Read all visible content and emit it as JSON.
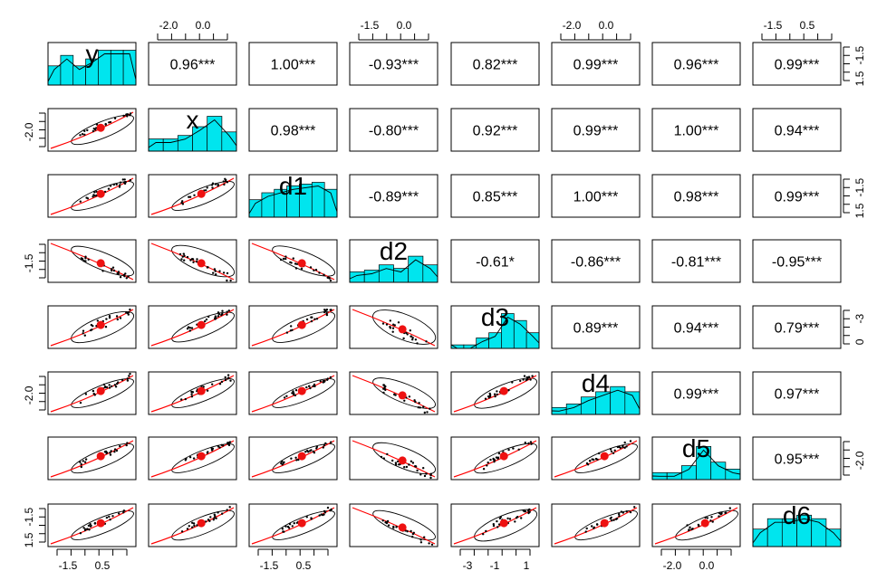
{
  "chart_data": {
    "type": "scatter",
    "title": "",
    "variables": [
      "y",
      "x",
      "d1",
      "d2",
      "d3",
      "d4",
      "d5",
      "d6"
    ],
    "correlations": [
      [
        "",
        "0.96***",
        "1.00***",
        "-0.93***",
        "0.82***",
        "0.99***",
        "0.96***",
        "0.99***"
      ],
      [
        "",
        "",
        "0.98***",
        "-0.80***",
        "0.92***",
        "0.99***",
        "1.00***",
        "0.94***"
      ],
      [
        "",
        "",
        "",
        "-0.89***",
        "0.85***",
        "1.00***",
        "0.98***",
        "0.99***"
      ],
      [
        "",
        "",
        "",
        "",
        "-0.61*",
        "-0.86***",
        "-0.81***",
        "-0.95***"
      ],
      [
        "",
        "",
        "",
        "",
        "",
        "0.89***",
        "0.94***",
        "0.79***"
      ],
      [
        "",
        "",
        "",
        "",
        "",
        "",
        "0.99***",
        "0.97***"
      ],
      [
        "",
        "",
        "",
        "",
        "",
        "",
        "",
        "0.95***"
      ],
      [
        "",
        "",
        "",
        "",
        "",
        "",
        "",
        ""
      ]
    ],
    "histograms": [
      [
        0.55,
        0.85,
        0.55,
        0.75,
        1.0,
        1.0,
        1.0
      ],
      [
        0.35,
        0.35,
        0.45,
        0.7,
        1.0,
        0.55
      ],
      [
        0.5,
        0.7,
        0.8,
        0.9,
        0.95,
        1.0,
        0.8
      ],
      [
        0.3,
        0.35,
        0.5,
        0.4,
        0.75,
        0.5
      ],
      [
        0.1,
        0.1,
        0.3,
        0.45,
        1.0,
        0.8,
        0.45
      ],
      [
        0.2,
        0.3,
        0.5,
        0.65,
        0.8,
        0.65
      ],
      [
        0.2,
        0.2,
        0.4,
        0.95,
        0.5,
        0.3
      ],
      [
        0.5,
        0.8,
        0.8,
        0.9,
        0.8,
        0.5
      ]
    ],
    "top_axis": {
      "1": [
        "-2.0",
        "0.0"
      ],
      "3": [
        "-1.5",
        "0.0"
      ],
      "5": [
        "-2.0",
        "0.0"
      ],
      "7": [
        "-1.5",
        "0.5"
      ]
    },
    "bottom_axis": {
      "0": [
        "-1.5",
        "0.5"
      ],
      "2": [
        "-1.5",
        "0.5"
      ],
      "4": [
        "-3",
        "-1",
        "1"
      ],
      "6": [
        "-2.0",
        "0.0"
      ]
    },
    "left_axis": {
      "1": [
        "-2.0"
      ],
      "3": [
        "-1.5"
      ],
      "5": [
        "-2.0"
      ],
      "7": [
        "-1.5",
        "1.5"
      ]
    },
    "right_axis": {
      "0": [
        "-1.5",
        "1.5"
      ],
      "2": [
        "-1.5",
        "1.5"
      ],
      "4": [
        "-3",
        "0"
      ],
      "6": [
        "-2.0"
      ]
    },
    "grid": false,
    "colors": {
      "hist_fill": "#00e5ee",
      "smooth": "#ff0000",
      "centroid": "#ee1111",
      "points": "#000000",
      "frame": "#000000"
    }
  }
}
